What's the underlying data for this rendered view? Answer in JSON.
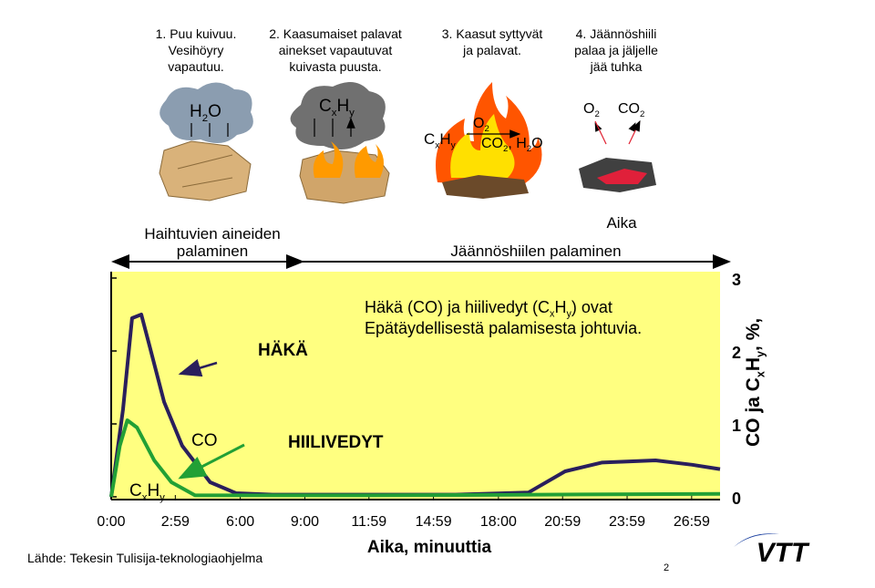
{
  "stages": [
    {
      "lines": [
        "1. Puu kuivuu.",
        "Vesihöyry",
        "vapautuu."
      ]
    },
    {
      "lines": [
        "2. Kaasumaiset palavat",
        "ainekset vapautuvat",
        "kuivasta puusta."
      ]
    },
    {
      "lines": [
        "3. Kaasut syttyvät",
        "ja palavat."
      ]
    },
    {
      "lines": [
        "4. Jäännöshiili",
        "palaa ja jäljelle",
        "jää tuhka"
      ]
    }
  ],
  "formulas": {
    "stage1": [
      "H",
      "2",
      "O"
    ],
    "stage2": [
      "C",
      "x",
      "H",
      "y"
    ],
    "stage3_fuel": [
      "C",
      "x",
      "H",
      "y"
    ],
    "stage3_oxygen": [
      "O",
      "2"
    ],
    "stage3_products": [
      "CO",
      "2",
      ", H",
      "2",
      "O"
    ],
    "stage4_oxygen": [
      "O",
      "2"
    ],
    "stage4_product": [
      "CO",
      "2"
    ]
  },
  "phases": {
    "volatile": [
      "Haihtuvien aineiden",
      "palaminen"
    ],
    "char": "Jäännöshiilen palaminen",
    "time": "Aika"
  },
  "chart_data": {
    "type": "line",
    "note": [
      [
        "Häkä (CO) ja hiilivedyt (C",
        "x",
        "H",
        "y",
        ") ovat"
      ],
      [
        "Epätäydellisestä palamisesta johtuvia."
      ]
    ],
    "annotations": {
      "co_title": "HÄKÄ",
      "co_label": "CO",
      "hc_title": "HIILIVEDYT",
      "hc_label": [
        "C",
        "x",
        "H",
        "y"
      ]
    },
    "xlabel": "Aika, minuuttia",
    "ylabel": [
      "CO ja C",
      "x",
      "H",
      "y",
      ", %,"
    ],
    "xlim": [
      0,
      28.3
    ],
    "xticks": [
      {
        "value": 0,
        "label": "0:00"
      },
      {
        "value": 2.98,
        "label": "2:59"
      },
      {
        "value": 6,
        "label": "6:00"
      },
      {
        "value": 9,
        "label": "9:00"
      },
      {
        "value": 11.98,
        "label": "11:59"
      },
      {
        "value": 14.98,
        "label": "14:59"
      },
      {
        "value": 18,
        "label": "18:00"
      },
      {
        "value": 20.98,
        "label": "20:59"
      },
      {
        "value": 23.98,
        "label": "23:59"
      },
      {
        "value": 26.98,
        "label": "26:59"
      }
    ],
    "ylim": [
      0,
      3
    ],
    "yticks": [
      0,
      1,
      2,
      3
    ],
    "background": "#ffff80",
    "series": [
      {
        "name": "CO",
        "color": "#2a1f5c",
        "x": [
          0,
          0.55,
          0.97,
          1.4,
          1.8,
          2.46,
          3.3,
          4.6,
          5.8,
          7.5,
          16,
          19.4,
          21.1,
          22.8,
          25.3,
          27,
          28.3
        ],
        "values": [
          0,
          1.2,
          2.45,
          2.5,
          2.05,
          1.3,
          0.7,
          0.2,
          0.05,
          0.03,
          0.03,
          0.06,
          0.35,
          0.47,
          0.5,
          0.44,
          0.38
        ]
      },
      {
        "name": "CxHy",
        "color": "#22a035",
        "x": [
          0,
          0.4,
          0.75,
          1.2,
          2.0,
          2.8,
          3.9,
          6,
          12,
          20,
          28.3
        ],
        "values": [
          0,
          0.7,
          1.05,
          0.95,
          0.5,
          0.2,
          0.02,
          0.02,
          0.02,
          0.03,
          0.04
        ]
      }
    ]
  },
  "source": "Lähde: Tekesin Tulisija-teknologiaohjelma",
  "page_number": "2",
  "logo": "VTT"
}
